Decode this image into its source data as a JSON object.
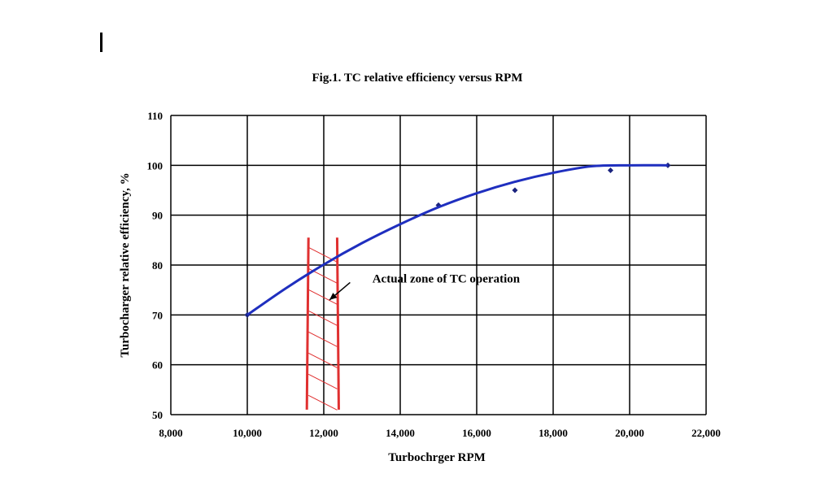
{
  "chart_data": {
    "type": "line",
    "title": "Fig.1. TC relative efficiency versus RPM",
    "xlabel": "Turbochrger RPM",
    "ylabel": "Turbocharger relative efficiency, %",
    "xlim": [
      8000,
      22000
    ],
    "ylim": [
      50,
      110
    ],
    "x_ticks": [
      8000,
      10000,
      12000,
      14000,
      16000,
      18000,
      20000,
      22000
    ],
    "x_tick_labels": [
      "8,000",
      "10,000",
      "12,000",
      "14,000",
      "16,000",
      "18,000",
      "20,000",
      "22,000"
    ],
    "y_ticks": [
      50,
      60,
      70,
      80,
      90,
      100,
      110
    ],
    "y_tick_labels": [
      "50",
      "60",
      "70",
      "80",
      "90",
      "100",
      "110"
    ],
    "grid": true,
    "legend": "none",
    "series": [
      {
        "kind": "scatter",
        "color": "#1a237e",
        "points": [
          [
            10000,
            70
          ],
          [
            15000,
            92
          ],
          [
            17000,
            95
          ],
          [
            19500,
            99
          ],
          [
            21000,
            100
          ]
        ]
      },
      {
        "kind": "fit-line",
        "color": "#1f2fbf",
        "x": [
          10000,
          11000,
          12000,
          13000,
          14000,
          15000,
          16000,
          17000,
          18000,
          19000,
          20000,
          21000
        ],
        "y": [
          70,
          75.3,
          80.1,
          84.4,
          88.2,
          91.6,
          94.4,
          96.7,
          98.5,
          99.8,
          100.0,
          100.0
        ]
      }
    ],
    "zone": {
      "color": "#e03030",
      "x_range": [
        11600,
        12350
      ],
      "y_range": [
        51,
        85.5
      ]
    },
    "annotations": [
      {
        "text": "Actual zone of TC operation",
        "x": 15200,
        "y": 76.5,
        "arrow_to": [
          12150,
          73
        ]
      }
    ]
  }
}
